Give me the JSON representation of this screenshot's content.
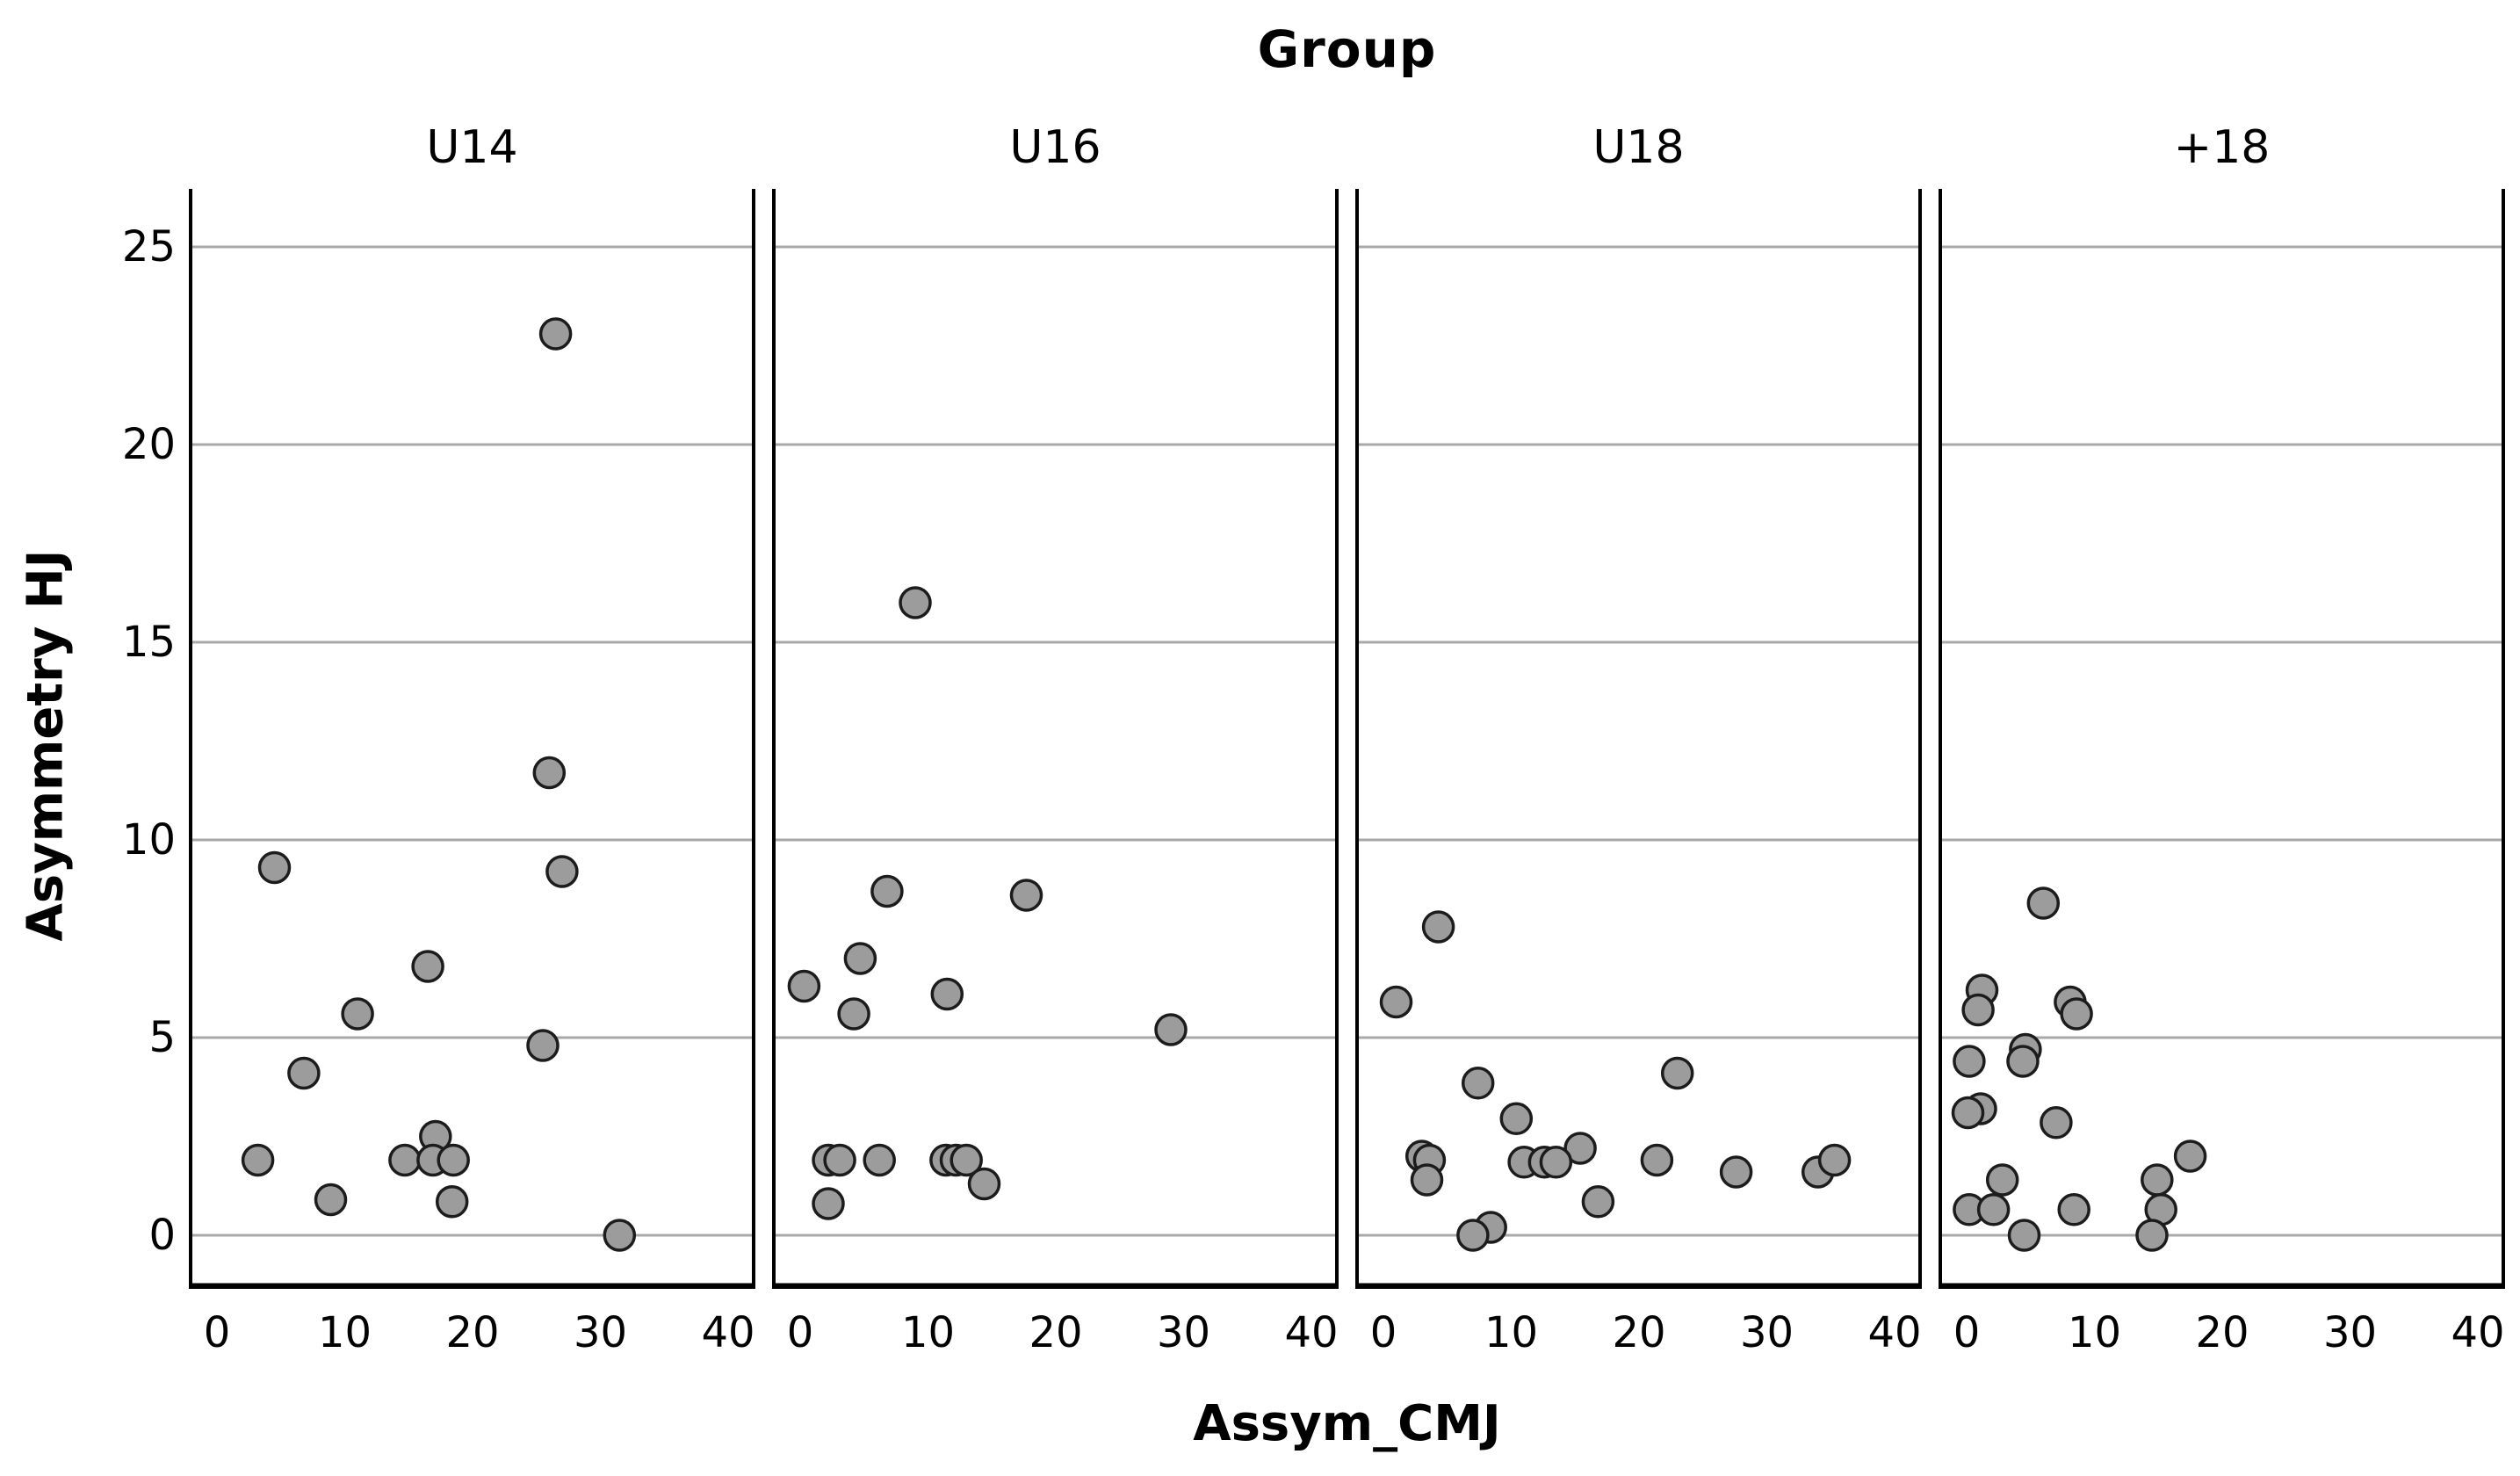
{
  "chart": {
    "title": "Group",
    "x_axis_label": "Assym_CMJ",
    "y_axis_label": "Asymmetry HJ"
  },
  "chart_data": {
    "type": "scatter",
    "title": "Group",
    "facet_by": "Group",
    "xlabel": "Assym_CMJ",
    "ylabel": "Asymmetry HJ",
    "x_ticks": [
      0,
      10,
      20,
      30,
      40
    ],
    "y_ticks": [
      0,
      5,
      10,
      15,
      20,
      25
    ],
    "xlim": [
      -2.2,
      42.2
    ],
    "ylim": [
      -1.4,
      26.5
    ],
    "grid": true,
    "grid_color": "#a8a8a8",
    "point_fill": "#9c9c9c",
    "point_stroke": "#1c1c1c",
    "axis_color": "#000000",
    "panels": [
      {
        "label": "U14",
        "points": [
          [
            26.5,
            22.8
          ],
          [
            26,
            11.7
          ],
          [
            4.5,
            9.3
          ],
          [
            27,
            9.2
          ],
          [
            16.5,
            6.8
          ],
          [
            11,
            5.6
          ],
          [
            25.5,
            4.8
          ],
          [
            6.8,
            4.1
          ],
          [
            17.1,
            2.5
          ],
          [
            3.2,
            1.9
          ],
          [
            14.7,
            1.9
          ],
          [
            16.9,
            1.9
          ],
          [
            18.5,
            1.9
          ],
          [
            8.9,
            0.9
          ],
          [
            18.4,
            0.85
          ],
          [
            31.5,
            0.0
          ]
        ]
      },
      {
        "label": "U16",
        "points": [
          [
            9,
            16.0
          ],
          [
            6.8,
            8.7
          ],
          [
            17.7,
            8.6
          ],
          [
            4.7,
            7.0
          ],
          [
            0.3,
            6.3
          ],
          [
            11.5,
            6.1
          ],
          [
            4.2,
            5.6
          ],
          [
            29,
            5.2
          ],
          [
            2.2,
            1.9
          ],
          [
            3.1,
            1.9
          ],
          [
            6.2,
            1.9
          ],
          [
            11.4,
            1.9
          ],
          [
            12.2,
            1.9
          ],
          [
            13.0,
            1.9
          ],
          [
            14.4,
            1.3
          ],
          [
            2.2,
            0.8
          ]
        ]
      },
      {
        "label": "U18",
        "points": [
          [
            4.3,
            7.8
          ],
          [
            1.0,
            5.9
          ],
          [
            23,
            4.1
          ],
          [
            7.4,
            3.85
          ],
          [
            10.4,
            2.95
          ],
          [
            15.4,
            2.2
          ],
          [
            3.0,
            2.0
          ],
          [
            3.6,
            1.9
          ],
          [
            11.0,
            1.85
          ],
          [
            12.6,
            1.85
          ],
          [
            13.5,
            1.85
          ],
          [
            21.4,
            1.9
          ],
          [
            27.6,
            1.6
          ],
          [
            34,
            1.6
          ],
          [
            35.3,
            1.9
          ],
          [
            3.4,
            1.4
          ],
          [
            16.8,
            0.85
          ],
          [
            8.4,
            0.2
          ],
          [
            7.0,
            0.0
          ]
        ]
      },
      {
        "label": "+18",
        "points": [
          [
            6.0,
            8.4
          ],
          [
            1.2,
            6.2
          ],
          [
            0.9,
            5.7
          ],
          [
            8.1,
            5.9
          ],
          [
            8.6,
            5.6
          ],
          [
            4.6,
            4.7
          ],
          [
            4.4,
            4.4
          ],
          [
            0.2,
            4.4
          ],
          [
            1.1,
            3.2
          ],
          [
            0.1,
            3.1
          ],
          [
            7.0,
            2.85
          ],
          [
            17.5,
            2.0
          ],
          [
            14.9,
            1.4
          ],
          [
            2.8,
            1.4
          ],
          [
            0.2,
            0.65
          ],
          [
            2.1,
            0.65
          ],
          [
            8.4,
            0.65
          ],
          [
            15.2,
            0.65
          ],
          [
            4.5,
            0.0
          ],
          [
            14.5,
            0.0
          ]
        ]
      }
    ]
  },
  "layout_note": "faceted scatter, 4 equal panels, shared y axis"
}
